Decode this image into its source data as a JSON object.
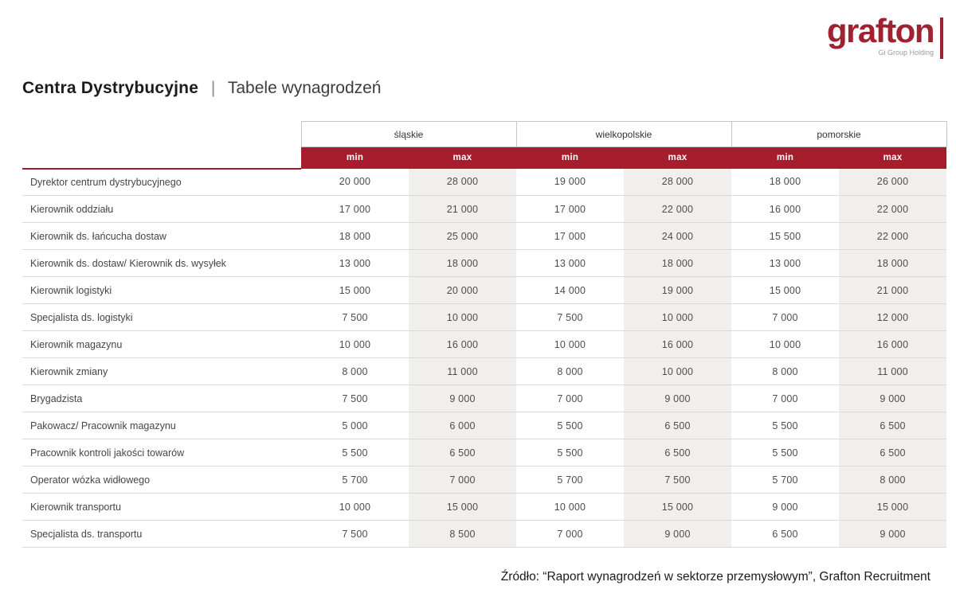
{
  "colors": {
    "brand_red": "#9f2232",
    "header_red": "#a61e2d",
    "max_column_bg": "#f1efee"
  },
  "logo": {
    "text": "grafton",
    "subtext": "Gi Group Holding"
  },
  "header": {
    "title_bold": "Centra Dystrybucyjne",
    "separator": "|",
    "title_light": "Tabele wynagrodzeń"
  },
  "table": {
    "regions": [
      {
        "name": "śląskie"
      },
      {
        "name": "wielkopolskie"
      },
      {
        "name": "pomorskie"
      }
    ],
    "min_label": "min",
    "max_label": "max",
    "rows": [
      {
        "label": "Dyrektor centrum dystrybucyjnego",
        "values": [
          "20 000",
          "28 000",
          "19 000",
          "28 000",
          "18 000",
          "26 000"
        ]
      },
      {
        "label": "Kierownik oddziału",
        "values": [
          "17 000",
          "21 000",
          "17 000",
          "22 000",
          "16 000",
          "22 000"
        ]
      },
      {
        "label": "Kierownik ds. łańcucha dostaw",
        "values": [
          "18 000",
          "25 000",
          "17 000",
          "24 000",
          "15 500",
          "22 000"
        ]
      },
      {
        "label": "Kierownik ds. dostaw/ Kierownik ds. wysyłek",
        "values": [
          "13 000",
          "18 000",
          "13 000",
          "18 000",
          "13 000",
          "18 000"
        ]
      },
      {
        "label": "Kierownik logistyki",
        "values": [
          "15 000",
          "20 000",
          "14 000",
          "19 000",
          "15 000",
          "21 000"
        ]
      },
      {
        "label": "Specjalista ds. logistyki",
        "values": [
          "7 500",
          "10 000",
          "7 500",
          "10 000",
          "7 000",
          "12 000"
        ]
      },
      {
        "label": "Kierownik magazynu",
        "values": [
          "10 000",
          "16 000",
          "10 000",
          "16 000",
          "10 000",
          "16 000"
        ]
      },
      {
        "label": "Kierownik zmiany",
        "values": [
          "8 000",
          "11 000",
          "8 000",
          "10 000",
          "8 000",
          "11 000"
        ]
      },
      {
        "label": "Brygadzista",
        "values": [
          "7 500",
          "9 000",
          "7 000",
          "9 000",
          "7 000",
          "9 000"
        ]
      },
      {
        "label": "Pakowacz/ Pracownik magazynu",
        "values": [
          "5 000",
          "6 000",
          "5 500",
          "6 500",
          "5 500",
          "6 500"
        ]
      },
      {
        "label": "Pracownik kontroli jakości towarów",
        "values": [
          "5 500",
          "6 500",
          "5 500",
          "6 500",
          "5 500",
          "6 500"
        ]
      },
      {
        "label": "Operator wózka widłowego",
        "values": [
          "5 700",
          "7 000",
          "5 700",
          "7 500",
          "5 700",
          "8 000"
        ]
      },
      {
        "label": "Kierownik transportu",
        "values": [
          "10 000",
          "15 000",
          "10 000",
          "15 000",
          "9 000",
          "15 000"
        ]
      },
      {
        "label": "Specjalista ds. transportu",
        "values": [
          "7 500",
          "8 500",
          "7 000",
          "9 000",
          "6 500",
          "9 000"
        ]
      }
    ]
  },
  "footer": {
    "source": "Źródło: “Raport wynagrodzeń w sektorze przemysłowym”, Grafton Recruitment"
  }
}
